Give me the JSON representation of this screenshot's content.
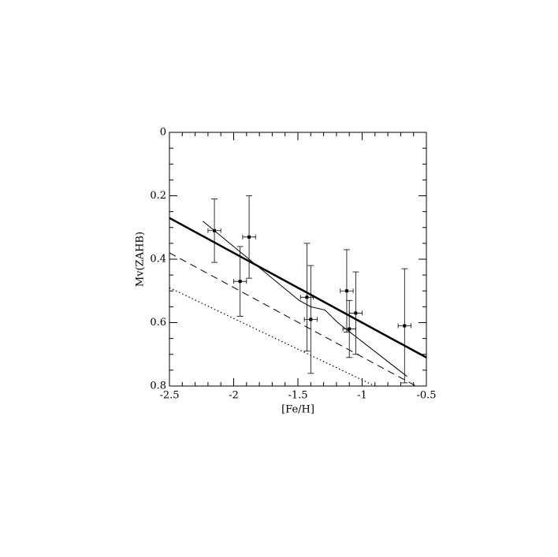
{
  "chart_data": {
    "type": "scatter",
    "xlabel": "[Fe/H]",
    "ylabel": "Mv(ZAHB)",
    "xlim": [
      -2.5,
      -0.5
    ],
    "ylim": [
      0,
      0.8
    ],
    "y_inverted": true,
    "xticks": [
      -2.5,
      -2,
      -1.5,
      -1,
      -0.5
    ],
    "yticks": [
      0,
      0.2,
      0.4,
      0.6,
      0.8
    ],
    "xminorticks": [
      -2.4,
      -2.3,
      -2.2,
      -2.1,
      -1.9,
      -1.8,
      -1.7,
      -1.6,
      -1.4,
      -1.3,
      -1.2,
      -1.1,
      -0.9,
      -0.8,
      -0.7,
      -0.6
    ],
    "yminorticks": [
      0.05,
      0.1,
      0.15,
      0.25,
      0.3,
      0.35,
      0.45,
      0.5,
      0.55,
      0.65,
      0.7,
      0.75
    ],
    "color": "#000000",
    "points": {
      "x": [
        -2.15,
        -1.95,
        -1.88,
        -1.43,
        -1.4,
        -1.12,
        -1.1,
        -1.05,
        -0.67
      ],
      "y": [
        0.31,
        0.47,
        0.33,
        0.52,
        0.59,
        0.5,
        0.62,
        0.57,
        0.61
      ],
      "xerr": [
        0.05,
        0.05,
        0.05,
        0.05,
        0.05,
        0.05,
        0.05,
        0.05,
        0.05
      ],
      "yerr": [
        0.1,
        0.11,
        0.13,
        0.17,
        0.17,
        0.13,
        0.09,
        0.13,
        0.18
      ]
    },
    "lines": [
      {
        "style": "thick",
        "x": [
          -2.5,
          -0.5
        ],
        "y": [
          0.27,
          0.71
        ]
      },
      {
        "style": "dashed",
        "x": [
          -2.5,
          -0.58
        ],
        "y": [
          0.38,
          0.8
        ]
      },
      {
        "style": "dotted",
        "x": [
          -2.5,
          -0.9
        ],
        "y": [
          0.49,
          0.8
        ]
      },
      {
        "style": "thin",
        "x": [
          -2.24,
          -1.49,
          -1.4,
          -1.29,
          -1.19,
          -0.65
        ],
        "y": [
          0.28,
          0.53,
          0.55,
          0.56,
          0.6,
          0.77
        ]
      }
    ]
  }
}
